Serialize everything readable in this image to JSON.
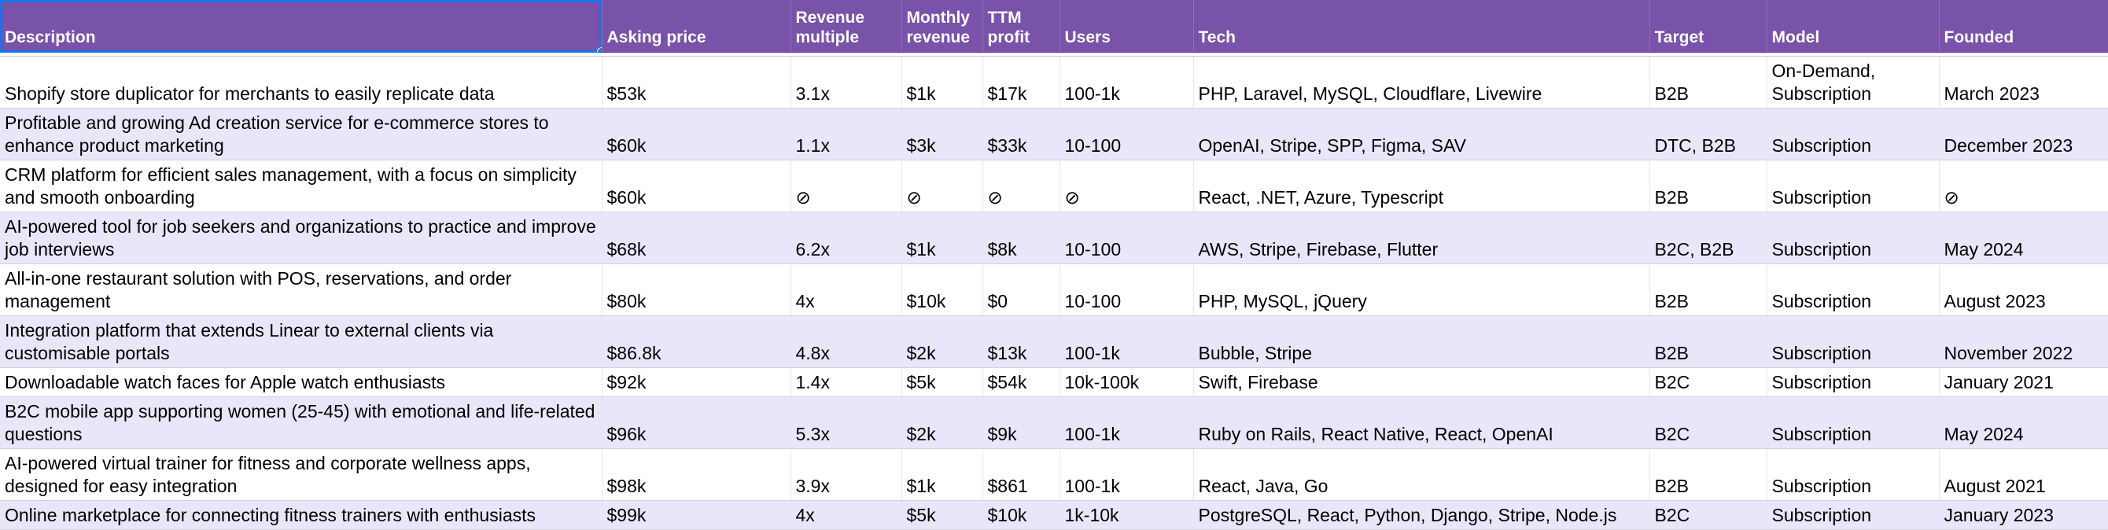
{
  "columns": [
    "Description",
    "Asking price",
    "Revenue multiple",
    "Monthly revenue",
    "TTM profit",
    "Users",
    "Tech",
    "Target",
    "Model",
    "Founded"
  ],
  "rows": [
    [
      "Shopify store duplicator for merchants to easily replicate data",
      "$53k",
      "3.1x",
      "$1k",
      "$17k",
      "100-1k",
      "PHP, Laravel, MySQL, Cloudflare, Livewire",
      "B2B",
      "On-Demand, Subscription",
      "March 2023"
    ],
    [
      "Profitable and growing Ad creation service for e-commerce stores to enhance product marketing",
      "$60k",
      "1.1x",
      "$3k",
      "$33k",
      "10-100",
      "OpenAI, Stripe, SPP, Figma, SAV",
      "DTC, B2B",
      "Subscription",
      "December 2023"
    ],
    [
      "CRM platform for efficient sales management, with a focus on simplicity and smooth onboarding",
      "$60k",
      "⊘",
      "⊘",
      "⊘",
      "⊘",
      "React, .NET, Azure, Typescript",
      "B2B",
      "Subscription",
      "⊘"
    ],
    [
      "AI-powered tool for job seekers and organizations to practice and improve job interviews",
      "$68k",
      "6.2x",
      "$1k",
      "$8k",
      "10-100",
      "AWS, Stripe, Firebase, Flutter",
      "B2C, B2B",
      "Subscription",
      "May 2024"
    ],
    [
      "All-in-one restaurant solution with POS, reservations, and order management",
      "$80k",
      "4x",
      "$10k",
      "$0",
      "10-100",
      "PHP, MySQL, jQuery",
      "B2B",
      "Subscription",
      "August 2023"
    ],
    [
      "Integration platform that extends Linear to external clients via customisable portals",
      "$86.8k",
      "4.8x",
      "$2k",
      "$13k",
      "100-1k",
      "Bubble, Stripe",
      "B2B",
      "Subscription",
      "November 2022"
    ],
    [
      "Downloadable watch faces for Apple watch enthusiasts",
      "$92k",
      "1.4x",
      "$5k",
      "$54k",
      "10k-100k",
      "Swift, Firebase",
      "B2C",
      "Subscription",
      "January 2021"
    ],
    [
      "B2C mobile app supporting women (25-45) with emotional and life-related questions",
      "$96k",
      "5.3x",
      "$2k",
      "$9k",
      "100-1k",
      "Ruby on Rails, React Native, React, OpenAI",
      "B2C",
      "Subscription",
      "May 2024"
    ],
    [
      "AI-powered virtual trainer for fitness and corporate wellness apps, designed for easy integration",
      "$98k",
      "3.9x",
      "$1k",
      "$861",
      "100-1k",
      "React, Java, Go",
      "B2B",
      "Subscription",
      "August 2021"
    ],
    [
      "Online marketplace for connecting fitness trainers with enthusiasts",
      "$99k",
      "4x",
      "$5k",
      "$10k",
      "1k-10k",
      "PostgreSQL, React, Python, Django, Stripe, Node.js",
      "B2C",
      "Subscription",
      "January 2023"
    ]
  ]
}
